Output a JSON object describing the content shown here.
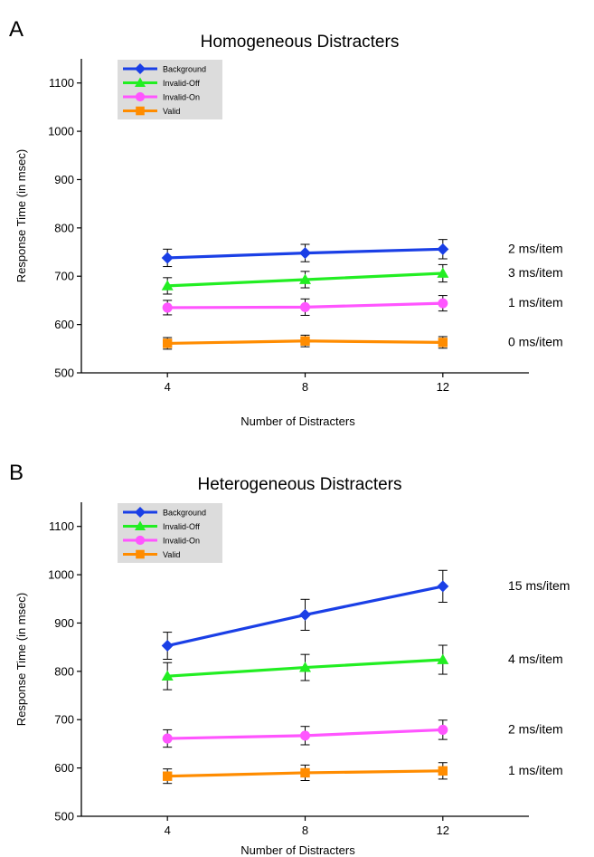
{
  "chart_data": [
    {
      "type": "line",
      "panel": "A",
      "title": "Homogeneous Distracters",
      "xlabel": "Number of Distracters",
      "ylabel": "Response Time (in msec)",
      "x": [
        4,
        8,
        12
      ],
      "xlim": [
        1.5,
        14.5
      ],
      "ylim": [
        500,
        1150
      ],
      "yticks": [
        500,
        600,
        700,
        800,
        900,
        1000,
        1100
      ],
      "legend_placement": "top-left",
      "series": [
        {
          "name": "Background",
          "color": "#1a3fe6",
          "marker": "diamond",
          "values": [
            738,
            748,
            756
          ],
          "errors": [
            18,
            18,
            20
          ],
          "slope_label": "2 ms/item"
        },
        {
          "name": "Invalid-Off",
          "color": "#22ee22",
          "marker": "triangle",
          "values": [
            680,
            693,
            706
          ],
          "errors": [
            17,
            17,
            18
          ],
          "slope_label": "3 ms/item"
        },
        {
          "name": "Invalid-On",
          "color": "#ff55ff",
          "marker": "circle",
          "values": [
            635,
            636,
            644
          ],
          "errors": [
            15,
            17,
            16
          ],
          "slope_label": "1 ms/item"
        },
        {
          "name": "Valid",
          "color": "#ff8c00",
          "marker": "square",
          "values": [
            561,
            566,
            563
          ],
          "errors": [
            12,
            12,
            12
          ],
          "slope_label": "0 ms/item"
        }
      ]
    },
    {
      "type": "line",
      "panel": "B",
      "title": "Heterogeneous Distracters",
      "xlabel": "Number of Distracters",
      "ylabel": "Response Time (in msec)",
      "x": [
        4,
        8,
        12
      ],
      "xlim": [
        1.5,
        14.5
      ],
      "ylim": [
        500,
        1150
      ],
      "yticks": [
        500,
        600,
        700,
        800,
        900,
        1000,
        1100
      ],
      "legend_placement": "top-left",
      "series": [
        {
          "name": "Background",
          "color": "#1a3fe6",
          "marker": "diamond",
          "values": [
            853,
            917,
            976
          ],
          "errors": [
            28,
            32,
            33
          ],
          "slope_label": "15 ms/item"
        },
        {
          "name": "Invalid-Off",
          "color": "#22ee22",
          "marker": "triangle",
          "values": [
            790,
            808,
            824
          ],
          "errors": [
            28,
            27,
            30
          ],
          "slope_label": "4 ms/item"
        },
        {
          "name": "Invalid-On",
          "color": "#ff55ff",
          "marker": "circle",
          "values": [
            661,
            667,
            679
          ],
          "errors": [
            18,
            19,
            20
          ],
          "slope_label": "2 ms/item"
        },
        {
          "name": "Valid",
          "color": "#ff8c00",
          "marker": "square",
          "values": [
            583,
            590,
            594
          ],
          "errors": [
            15,
            16,
            17
          ],
          "slope_label": "1 ms/item"
        }
      ]
    }
  ]
}
